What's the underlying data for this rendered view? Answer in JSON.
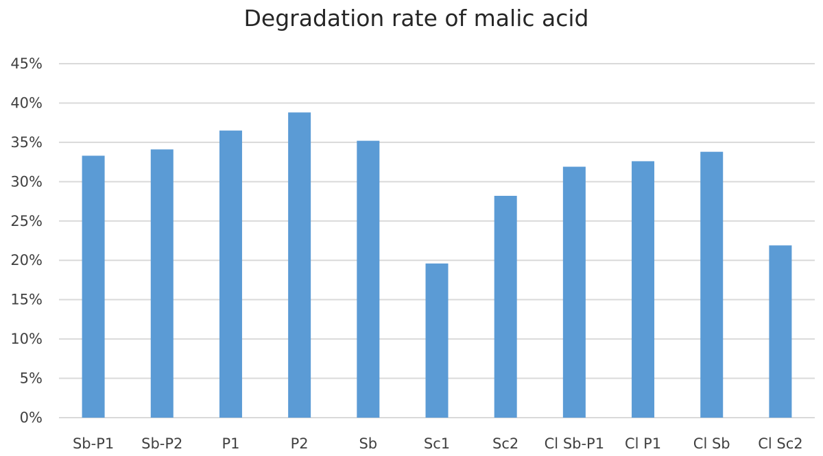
{
  "chart_data": {
    "type": "bar",
    "title": "Degradation rate of malic acid",
    "xlabel": "",
    "ylabel": "",
    "categories": [
      "Sb-P1",
      "Sb-P2",
      "P1",
      "P2",
      "Sb",
      "Sc1",
      "Sc2",
      "Cl Sb-P1",
      "Cl P1",
      "Cl Sb",
      "Cl Sc2"
    ],
    "series": [
      {
        "values": [
          33.3,
          34.1,
          36.5,
          38.8,
          35.2,
          19.6,
          28.2,
          31.9,
          32.6,
          33.8,
          21.9
        ],
        "color": "#5b9bd5"
      }
    ],
    "ylim": [
      0,
      45
    ],
    "yticks": [
      0,
      5,
      10,
      15,
      20,
      25,
      30,
      35,
      40,
      45
    ],
    "ytick_labels": [
      "0%",
      "5%",
      "10%",
      "15%",
      "20%",
      "25%",
      "30%",
      "35%",
      "40%",
      "45%"
    ],
    "grid": true,
    "legend": "none"
  },
  "colors": {
    "bar": "#5b9bd5",
    "grid": "#d9d9d9",
    "text": "#404040",
    "title": "#262626"
  }
}
